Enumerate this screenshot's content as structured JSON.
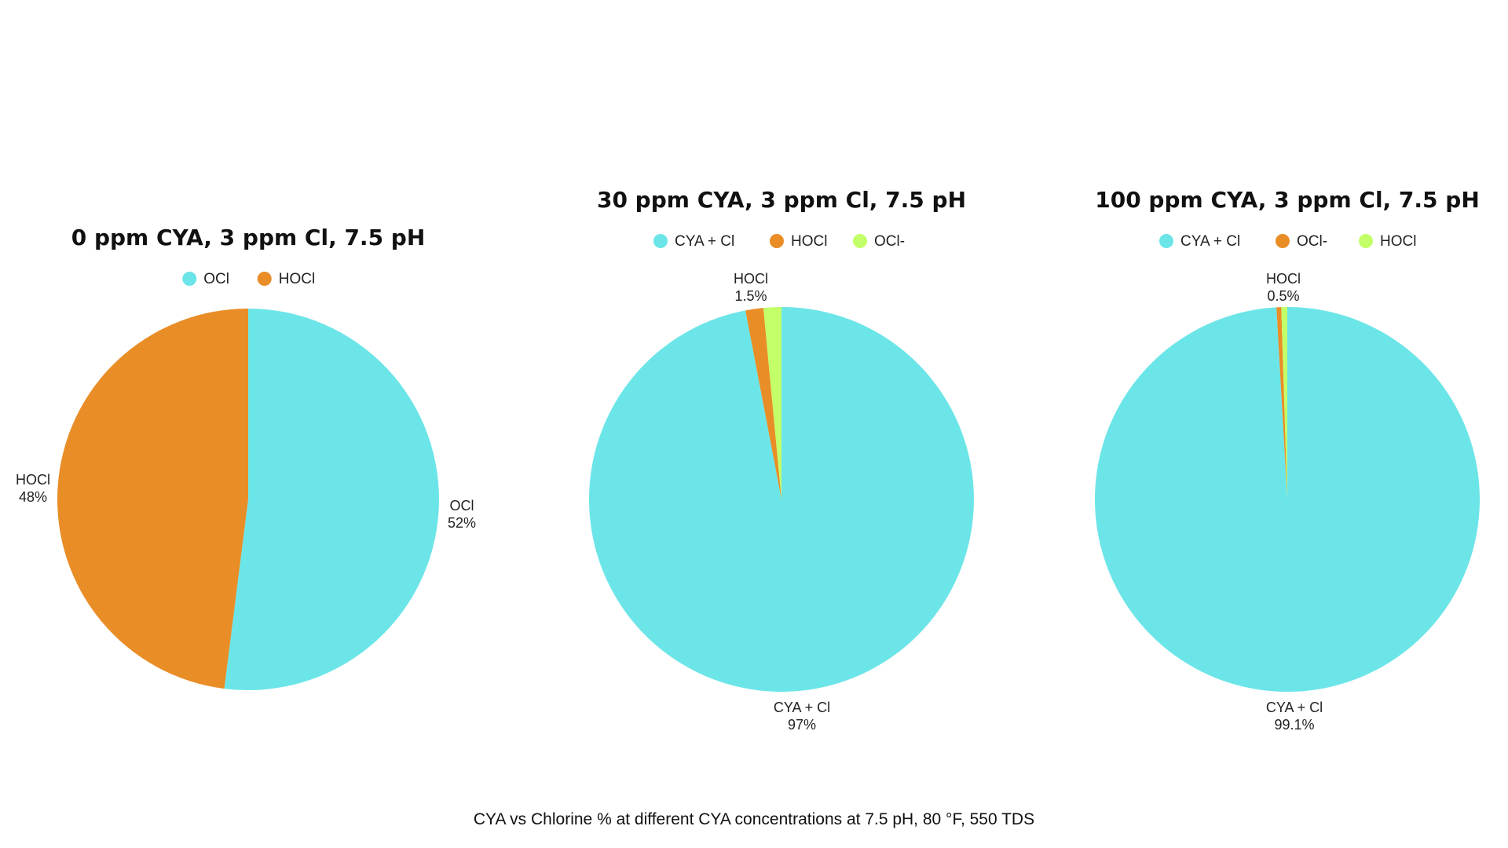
{
  "caption": "CYA vs Chlorine % at different CYA concentrations at 7.5 pH, 80 °F, 550 TDS",
  "colors": {
    "cyan": "#6ce5e8",
    "orange": "#e98d27",
    "lime": "#c3ff68"
  },
  "chart_data": [
    {
      "type": "pie",
      "title": "0 ppm CYA, 3 ppm Cl, 7.5 pH",
      "legend": [
        "OCl",
        "HOCl"
      ],
      "slices": [
        {
          "name": "OCl",
          "value": 52,
          "label": "52%",
          "color": "#6ce5e8"
        },
        {
          "name": "HOCl",
          "value": 48,
          "label": "48%",
          "color": "#e98d27"
        }
      ]
    },
    {
      "type": "pie",
      "title": "30 ppm CYA, 3 ppm Cl, 7.5 pH",
      "legend": [
        "CYA + Cl",
        "HOCl",
        "OCl-"
      ],
      "slices": [
        {
          "name": "CYA + Cl",
          "value": 97,
          "label": "97%",
          "color": "#6ce5e8"
        },
        {
          "name": "HOCl",
          "value": 1.5,
          "label": "1.5%",
          "color": "#e98d27"
        },
        {
          "name": "OCl-",
          "value": 1.5,
          "label": "",
          "color": "#c3ff68"
        }
      ]
    },
    {
      "type": "pie",
      "title": "100 ppm CYA, 3 ppm Cl, 7.5 pH",
      "legend": [
        "CYA + Cl",
        "OCl-",
        "HOCl"
      ],
      "slices": [
        {
          "name": "CYA + Cl",
          "value": 99.1,
          "label": "99.1%",
          "color": "#6ce5e8"
        },
        {
          "name": "OCl-",
          "value": 0.4,
          "label": "",
          "color": "#e98d27"
        },
        {
          "name": "HOCl",
          "value": 0.5,
          "label": "0.5%",
          "color": "#c3ff68"
        }
      ]
    }
  ]
}
